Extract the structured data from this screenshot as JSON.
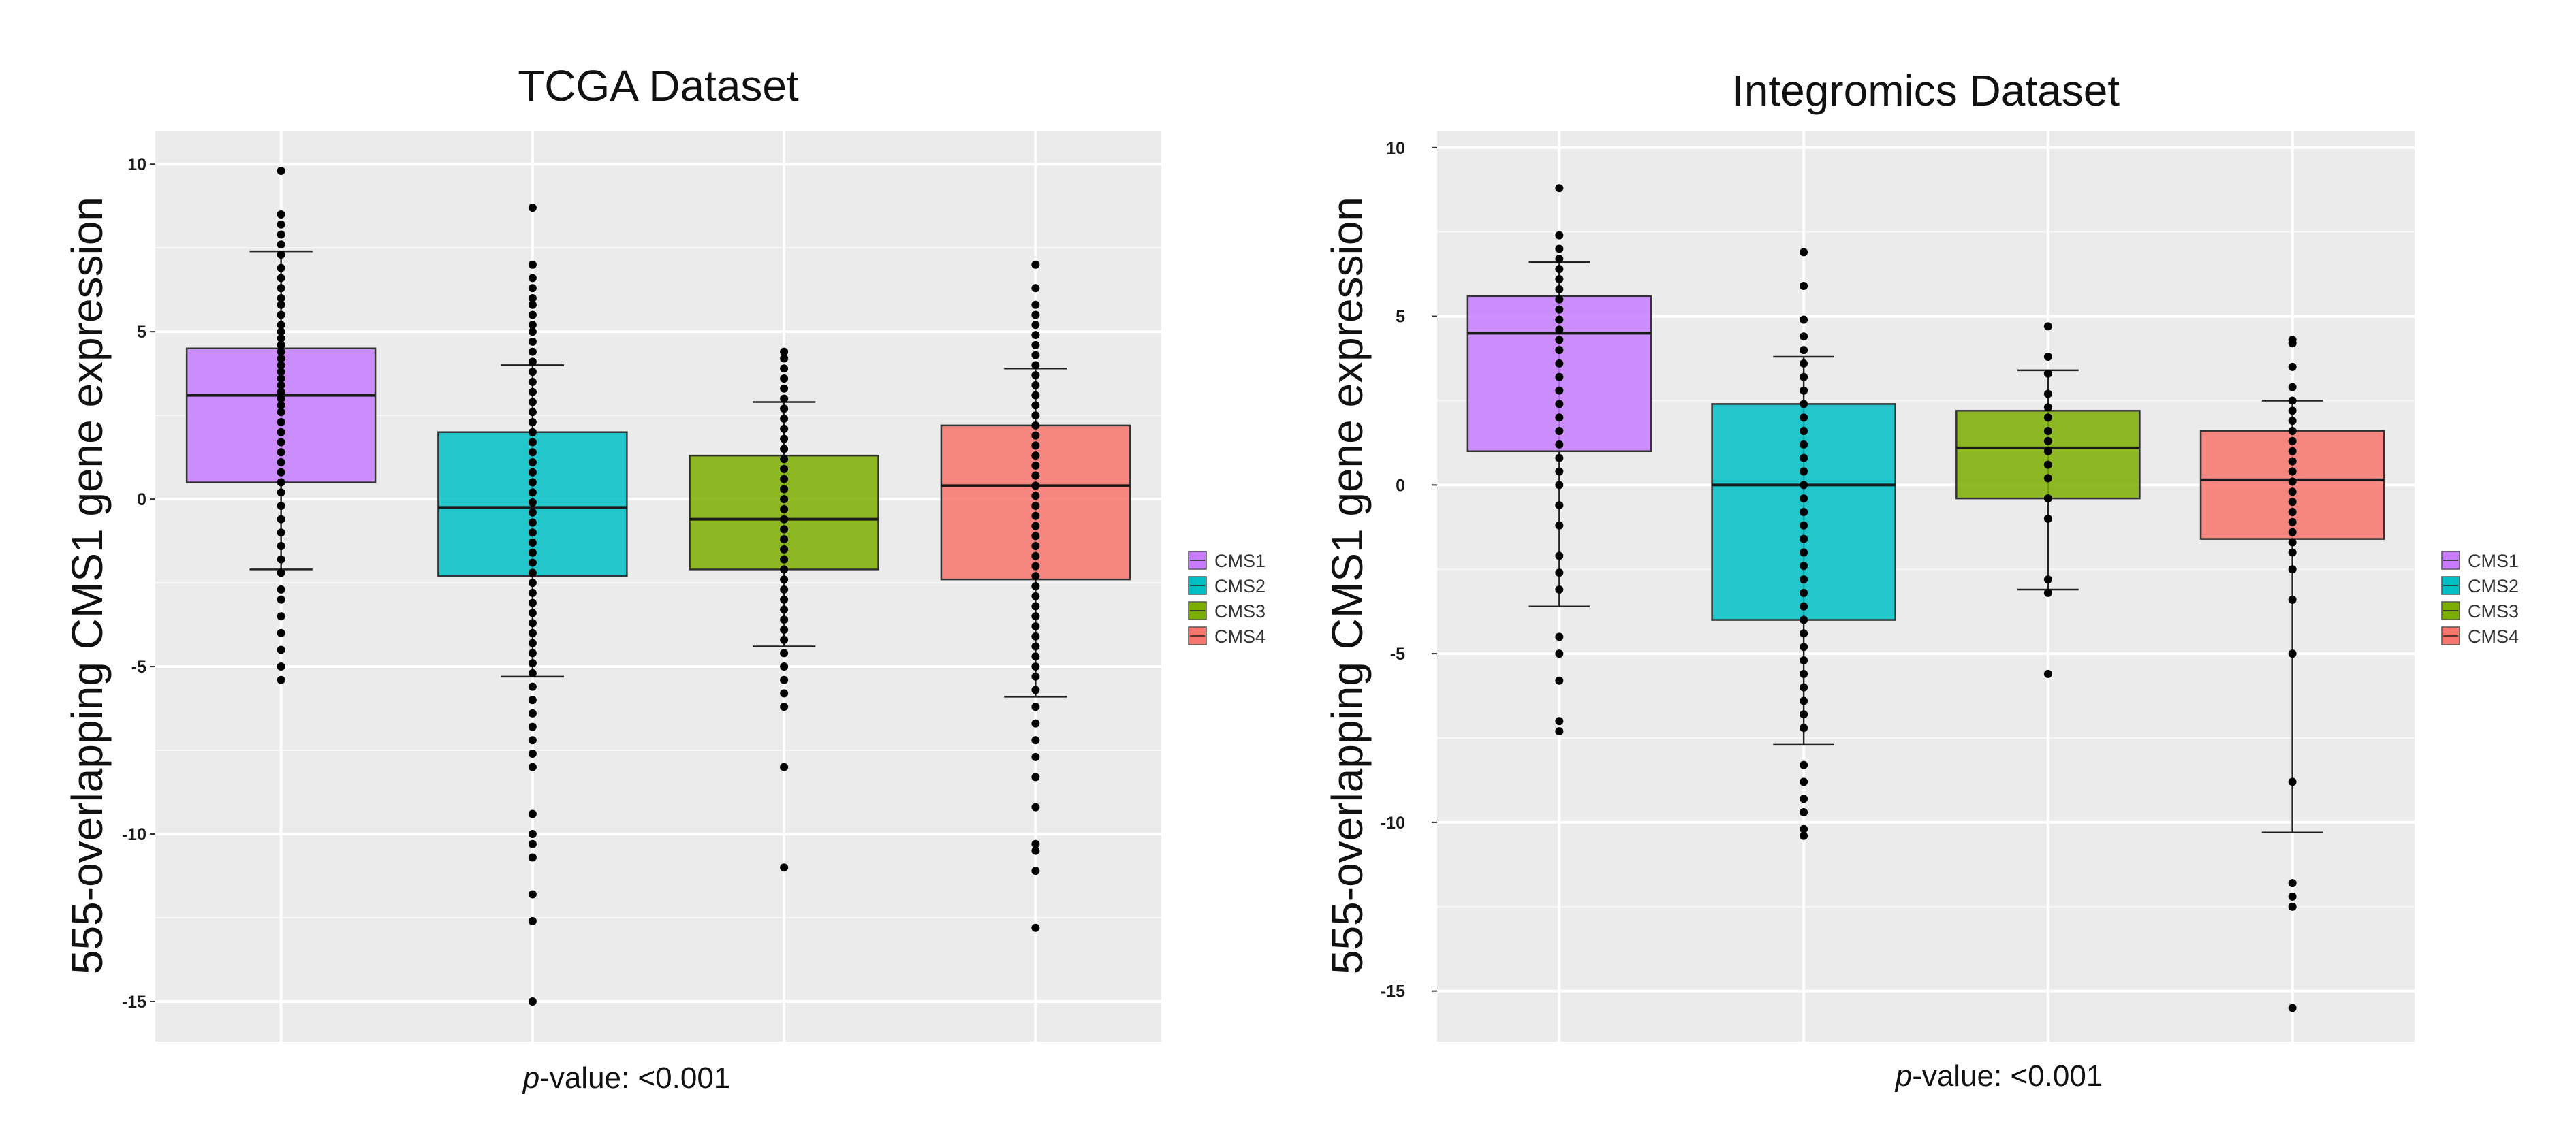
{
  "chart_data": [
    {
      "type": "box",
      "title": "TCGA Dataset",
      "ylabel": "555-overlapping CMS1 gene expression",
      "xlabel_italic": "p",
      "xlabel_rest": "-value: <0.001",
      "ylim": [
        -16.2,
        11.0
      ],
      "yticks": [
        10,
        5,
        0,
        -5,
        -10,
        -15
      ],
      "ytick_labels": [
        "10",
        "5",
        "0",
        "-5",
        "-10",
        "-15"
      ],
      "grid": true,
      "legend": {
        "position": "right",
        "labels": [
          "CMS1",
          "CMS2",
          "CMS3",
          "CMS4"
        ]
      },
      "series": [
        {
          "name": "CMS1",
          "color": "#C77CFF",
          "q1": 0.5,
          "median": 3.1,
          "q3": 4.5,
          "whisker_low": -2.1,
          "whisker_high": 7.4,
          "points": [
            9.8,
            8.5,
            8.2,
            7.9,
            7.6,
            7.3,
            6.9,
            6.6,
            6.3,
            6.0,
            5.8,
            5.5,
            5.2,
            5.0,
            4.8,
            4.6,
            4.4,
            4.2,
            4.0,
            3.8,
            3.6,
            3.4,
            3.2,
            3.0,
            2.8,
            2.6,
            2.3,
            2.0,
            1.7,
            1.4,
            1.1,
            0.8,
            0.5,
            0.2,
            -0.2,
            -0.6,
            -1.0,
            -1.4,
            -1.8,
            -2.2,
            -2.7,
            -3.0,
            -3.5,
            -4.0,
            -4.5,
            -5.0,
            -5.4
          ]
        },
        {
          "name": "CMS2",
          "color": "#00BFC4",
          "q1": -2.3,
          "median": -0.25,
          "q3": 2.0,
          "whisker_low": -5.3,
          "whisker_high": 4.0,
          "points": [
            8.7,
            7.0,
            6.6,
            6.3,
            6.0,
            5.8,
            5.5,
            5.2,
            5.0,
            4.7,
            4.4,
            4.1,
            3.8,
            3.5,
            3.2,
            2.9,
            2.6,
            2.3,
            2.0,
            1.7,
            1.4,
            1.1,
            0.8,
            0.5,
            0.2,
            -0.1,
            -0.4,
            -0.7,
            -1.0,
            -1.3,
            -1.6,
            -1.9,
            -2.2,
            -2.5,
            -2.8,
            -3.1,
            -3.4,
            -3.7,
            -4.0,
            -4.3,
            -4.6,
            -4.9,
            -5.2,
            -5.6,
            -6.0,
            -6.4,
            -6.8,
            -7.2,
            -7.6,
            -8.0,
            -9.4,
            -10.0,
            -10.3,
            -10.7,
            -11.8,
            -12.6,
            -15.0
          ]
        },
        {
          "name": "CMS3",
          "color": "#7CAE00",
          "q1": -2.1,
          "median": -0.6,
          "q3": 1.3,
          "whisker_low": -4.4,
          "whisker_high": 2.9,
          "points": [
            4.4,
            4.2,
            3.9,
            3.6,
            3.3,
            3.0,
            2.7,
            2.4,
            2.1,
            1.8,
            1.5,
            1.2,
            0.9,
            0.6,
            0.3,
            0.0,
            -0.3,
            -0.6,
            -0.9,
            -1.2,
            -1.5,
            -1.8,
            -2.1,
            -2.4,
            -2.7,
            -3.0,
            -3.3,
            -3.6,
            -3.9,
            -4.2,
            -4.6,
            -5.0,
            -5.4,
            -5.8,
            -6.2,
            -8.0,
            -11.0
          ]
        },
        {
          "name": "CMS4",
          "color": "#F8766D",
          "q1": -2.4,
          "median": 0.4,
          "q3": 2.2,
          "whisker_low": -5.9,
          "whisker_high": 3.9,
          "points": [
            7.0,
            6.3,
            5.8,
            5.5,
            5.2,
            4.9,
            4.6,
            4.3,
            4.0,
            3.7,
            3.4,
            3.1,
            2.8,
            2.5,
            2.2,
            1.9,
            1.6,
            1.3,
            1.0,
            0.7,
            0.4,
            0.1,
            -0.2,
            -0.5,
            -0.8,
            -1.1,
            -1.4,
            -1.7,
            -2.0,
            -2.3,
            -2.6,
            -2.9,
            -3.2,
            -3.5,
            -3.8,
            -4.1,
            -4.4,
            -4.7,
            -5.0,
            -5.3,
            -5.7,
            -6.2,
            -6.7,
            -7.2,
            -7.7,
            -8.3,
            -9.2,
            -10.3,
            -10.5,
            -11.1,
            -12.8
          ]
        }
      ]
    },
    {
      "type": "box",
      "title": "Integromics Dataset",
      "ylabel": "555-overlapping CMS1 gene expression",
      "xlabel_italic": "p",
      "xlabel_rest": "-value: <0.001",
      "ylim": [
        -16.5,
        10.5
      ],
      "yticks": [
        10,
        5,
        0,
        -5,
        -10,
        -15
      ],
      "ytick_labels": [
        "10",
        "5",
        "0",
        "-5",
        "-10",
        "-15"
      ],
      "grid": true,
      "legend": {
        "position": "right",
        "labels": [
          "CMS1",
          "CMS2",
          "CMS3",
          "CMS4"
        ]
      },
      "series": [
        {
          "name": "CMS1",
          "color": "#C77CFF",
          "q1": 1.0,
          "median": 4.5,
          "q3": 5.6,
          "whisker_low": -3.6,
          "whisker_high": 6.6,
          "points": [
            8.8,
            7.4,
            7.0,
            6.7,
            6.4,
            6.1,
            5.8,
            5.5,
            5.2,
            4.9,
            4.6,
            4.3,
            4.0,
            3.6,
            3.2,
            2.8,
            2.4,
            2.0,
            1.6,
            1.2,
            0.8,
            0.4,
            0.0,
            -0.6,
            -1.2,
            -2.1,
            -2.6,
            -3.1,
            -4.5,
            -5.0,
            -5.8,
            -7.0,
            -7.3
          ]
        },
        {
          "name": "CMS2",
          "color": "#00BFC4",
          "q1": -4.0,
          "median": 0.0,
          "q3": 2.4,
          "whisker_low": -7.7,
          "whisker_high": 3.8,
          "points": [
            6.9,
            5.9,
            4.9,
            4.4,
            4.0,
            3.6,
            3.2,
            2.8,
            2.4,
            2.0,
            1.6,
            1.2,
            0.8,
            0.4,
            0.0,
            -0.4,
            -0.8,
            -1.2,
            -1.6,
            -2.0,
            -2.4,
            -2.8,
            -3.2,
            -3.6,
            -4.0,
            -4.4,
            -4.8,
            -5.2,
            -5.6,
            -6.0,
            -6.4,
            -6.8,
            -7.2,
            -8.3,
            -8.8,
            -9.3,
            -9.7,
            -10.2,
            -10.4
          ]
        },
        {
          "name": "CMS3",
          "color": "#7CAE00",
          "q1": -0.4,
          "median": 1.1,
          "q3": 2.2,
          "whisker_low": -3.1,
          "whisker_high": 3.4,
          "points": [
            4.7,
            3.8,
            3.3,
            2.7,
            2.3,
            2.0,
            1.6,
            1.3,
            1.0,
            0.6,
            0.2,
            -0.4,
            -1.0,
            -2.8,
            -3.2,
            -5.6
          ]
        },
        {
          "name": "CMS4",
          "color": "#F8766D",
          "q1": -1.6,
          "median": 0.15,
          "q3": 1.6,
          "whisker_low": -10.3,
          "whisker_high": 2.5,
          "points": [
            4.3,
            4.2,
            3.5,
            2.9,
            2.5,
            2.2,
            1.9,
            1.6,
            1.3,
            1.0,
            0.7,
            0.4,
            0.1,
            -0.2,
            -0.5,
            -0.8,
            -1.1,
            -1.4,
            -1.7,
            -2.0,
            -2.5,
            -3.4,
            -5.0,
            -8.8,
            -11.8,
            -12.2,
            -12.5,
            -15.5
          ]
        }
      ]
    }
  ]
}
